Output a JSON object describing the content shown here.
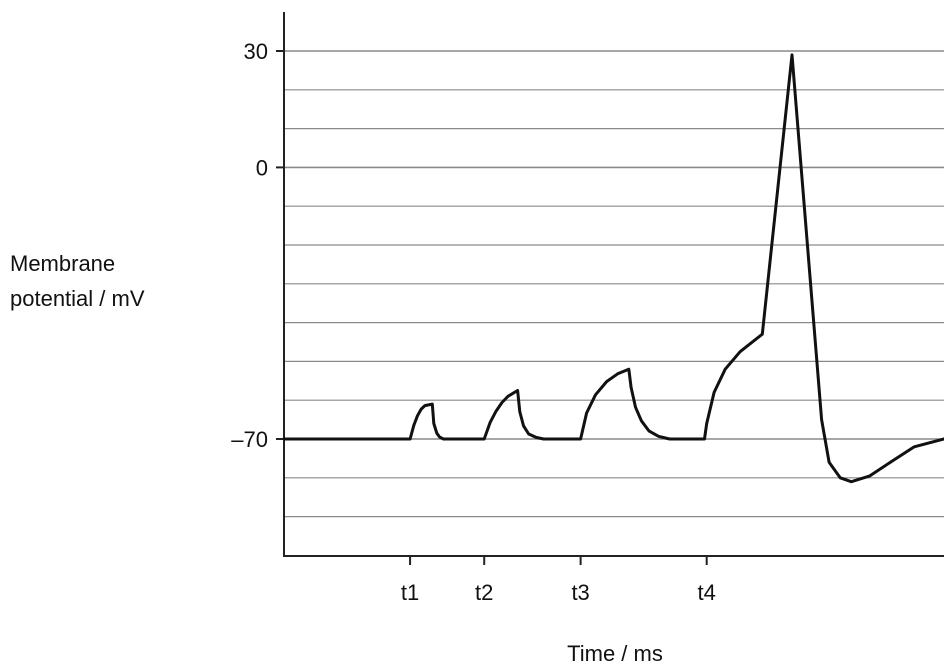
{
  "chart_data": {
    "type": "line",
    "title": "",
    "xlabel": "Time / ms",
    "ylabel_lines": [
      "Membrane",
      "potential / mV"
    ],
    "y_ticks": [
      {
        "value": 30,
        "label": "30"
      },
      {
        "value": 0,
        "label": "0"
      },
      {
        "value": -70,
        "label": "–70"
      }
    ],
    "x_ticks": [
      {
        "value": 1,
        "label": "t1"
      },
      {
        "value": 2,
        "label": "t2"
      },
      {
        "value": 3.3,
        "label": "t3"
      },
      {
        "value": 5,
        "label": "t4"
      }
    ],
    "xlim": [
      -0.7,
      8.2
    ],
    "ylim": [
      -100,
      40
    ],
    "grid": true,
    "grid_step": 10,
    "line_color": "#111111",
    "grid_color": "#8a8a8a",
    "series": [
      {
        "points": [
          [
            -0.7,
            -70
          ],
          [
            1.0,
            -70
          ],
          [
            1.05,
            -66.5
          ],
          [
            1.1,
            -64.0
          ],
          [
            1.15,
            -62.3
          ],
          [
            1.2,
            -61.4
          ],
          [
            1.3,
            -61.0
          ],
          [
            1.32,
            -66.0
          ],
          [
            1.36,
            -68.5
          ],
          [
            1.4,
            -69.5
          ],
          [
            1.45,
            -70
          ],
          [
            2.0,
            -70
          ],
          [
            2.08,
            -65.7
          ],
          [
            2.16,
            -62.8
          ],
          [
            2.24,
            -60.6
          ],
          [
            2.32,
            -59.0
          ],
          [
            2.45,
            -57.5
          ],
          [
            2.48,
            -63.0
          ],
          [
            2.53,
            -66.6
          ],
          [
            2.6,
            -68.7
          ],
          [
            2.7,
            -69.6
          ],
          [
            2.8,
            -70
          ],
          [
            3.3,
            -70
          ],
          [
            3.38,
            -63.3
          ],
          [
            3.5,
            -58.6
          ],
          [
            3.65,
            -55.2
          ],
          [
            3.8,
            -53.2
          ],
          [
            3.95,
            -52.0
          ],
          [
            3.98,
            -56.7
          ],
          [
            4.04,
            -61.8
          ],
          [
            4.12,
            -65.3
          ],
          [
            4.22,
            -67.9
          ],
          [
            4.35,
            -69.3
          ],
          [
            4.5,
            -70
          ],
          [
            4.97,
            -70
          ],
          [
            5.0,
            -66.0
          ],
          [
            5.1,
            -58.0
          ],
          [
            5.25,
            -52.0
          ],
          [
            5.45,
            -47.5
          ],
          [
            5.75,
            -43.0
          ],
          [
            6.15,
            29.0
          ],
          [
            6.55,
            -65.0
          ],
          [
            6.65,
            -76.0
          ],
          [
            6.8,
            -80.0
          ],
          [
            6.95,
            -81.0
          ],
          [
            7.2,
            -79.5
          ],
          [
            7.5,
            -75.7
          ],
          [
            7.8,
            -72.0
          ],
          [
            8.2,
            -70
          ]
        ]
      }
    ]
  }
}
